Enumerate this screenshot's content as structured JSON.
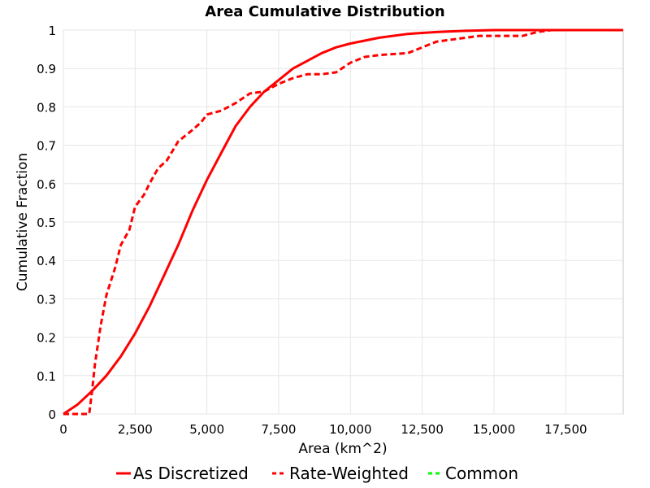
{
  "chart_data": {
    "type": "line",
    "title": "Area Cumulative Distribution",
    "xlabel": "Area (km^2)",
    "ylabel": "Cumulative Fraction",
    "xlim": [
      0,
      19500
    ],
    "ylim": [
      0,
      1
    ],
    "xticks": [
      0,
      2500,
      5000,
      7500,
      10000,
      12500,
      15000,
      17500
    ],
    "xtick_labels": [
      "0",
      "2,500",
      "5,000",
      "7,500",
      "10,000",
      "12,500",
      "15,000",
      "17,500"
    ],
    "yticks": [
      0,
      0.1,
      0.2,
      0.3,
      0.4,
      0.5,
      0.6,
      0.7,
      0.8,
      0.9,
      1
    ],
    "ytick_labels": [
      "0",
      "0.1",
      "0.2",
      "0.3",
      "0.4",
      "0.5",
      "0.6",
      "0.7",
      "0.8",
      "0.9",
      "1"
    ],
    "grid": true,
    "legend_position": "bottom",
    "series": [
      {
        "name": "As Discretized",
        "color": "#ff0000",
        "style": "solid",
        "x": [
          0,
          500,
          1000,
          1500,
          2000,
          2500,
          3000,
          3500,
          4000,
          4500,
          5000,
          5500,
          6000,
          6500,
          7000,
          7500,
          8000,
          8500,
          9000,
          9500,
          10000,
          11000,
          12000,
          13000,
          14000,
          15000,
          17000,
          19500
        ],
        "y": [
          0,
          0.025,
          0.06,
          0.1,
          0.15,
          0.21,
          0.28,
          0.36,
          0.44,
          0.53,
          0.61,
          0.68,
          0.75,
          0.8,
          0.84,
          0.87,
          0.9,
          0.92,
          0.94,
          0.955,
          0.965,
          0.98,
          0.99,
          0.995,
          0.998,
          1,
          1,
          1
        ]
      },
      {
        "name": "Rate-Weighted",
        "color": "#ff0000",
        "style": "dashed",
        "x": [
          0,
          900,
          1000,
          1100,
          1300,
          1500,
          1800,
          2000,
          2300,
          2500,
          2800,
          3000,
          3300,
          3600,
          4000,
          4500,
          4800,
          5000,
          5500,
          6000,
          6500,
          7000,
          7500,
          8000,
          8500,
          9000,
          9500,
          10000,
          10500,
          11000,
          12000,
          12500,
          13000,
          13500,
          14500,
          15000,
          16000,
          16500,
          17000,
          19500
        ],
        "y": [
          0,
          0,
          0.06,
          0.13,
          0.23,
          0.31,
          0.38,
          0.44,
          0.48,
          0.54,
          0.57,
          0.6,
          0.64,
          0.66,
          0.71,
          0.74,
          0.76,
          0.78,
          0.79,
          0.81,
          0.835,
          0.84,
          0.86,
          0.875,
          0.885,
          0.885,
          0.89,
          0.915,
          0.93,
          0.935,
          0.94,
          0.955,
          0.97,
          0.975,
          0.985,
          0.985,
          0.985,
          0.995,
          1,
          1
        ]
      },
      {
        "name": "Common",
        "color": "#00ff00",
        "style": "dashed",
        "x": [],
        "y": []
      }
    ]
  }
}
